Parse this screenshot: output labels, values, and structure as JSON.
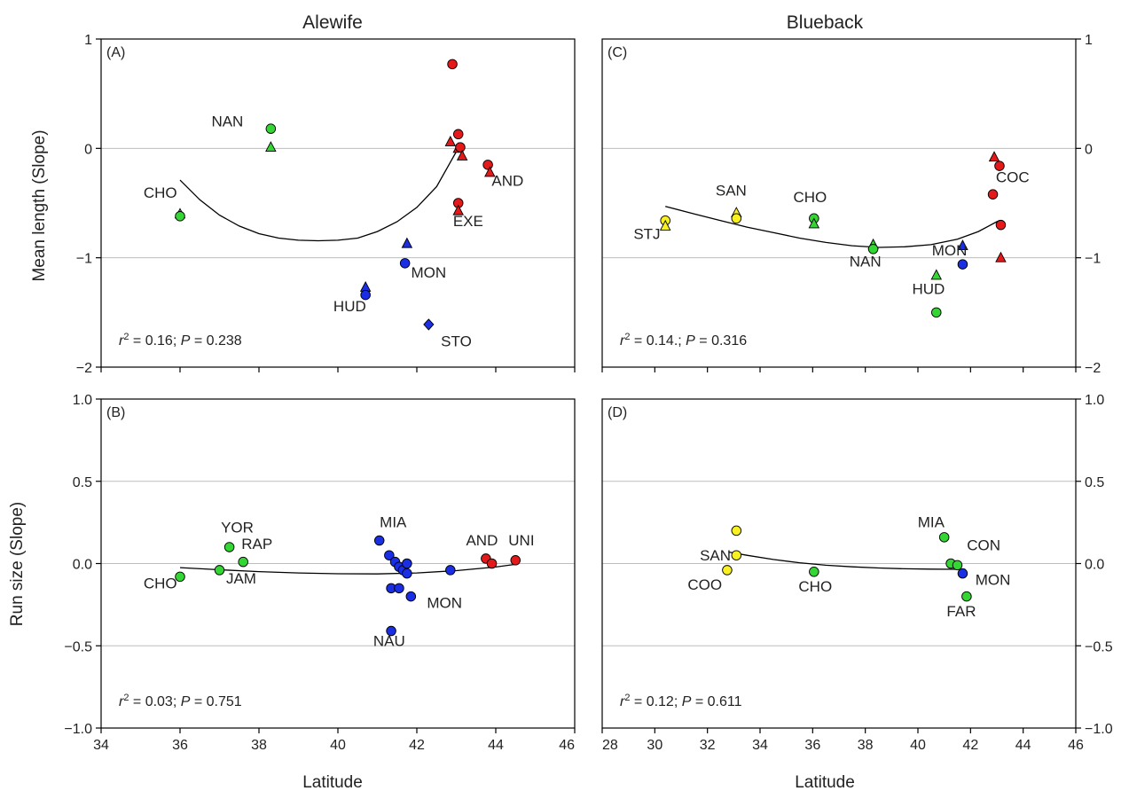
{
  "figure": {
    "column_titles": [
      "Alewife",
      "Blueback"
    ],
    "xlabel": "Latitude",
    "row_ylabels": [
      "Mean length (Slope)",
      "Run size (Slope)"
    ]
  },
  "colors": {
    "green": "#33d633",
    "red": "#e6191a",
    "blue": "#1a2ee6",
    "yellow": "#f7f022",
    "grid": "#bdbdbd"
  },
  "chart_data": [
    {
      "id": "A",
      "panel_label": "(A)",
      "type": "scatter",
      "xlim": [
        34,
        46
      ],
      "ylim": [
        -2,
        1
      ],
      "xticks": [
        34,
        36,
        38,
        40,
        42,
        44,
        46
      ],
      "yticks": [
        -2,
        -1,
        0,
        1
      ],
      "ytick_labels": [
        "−2",
        "−1",
        "0",
        "1"
      ],
      "grid_y": [
        -1,
        0
      ],
      "ytick_side": "left",
      "stats": {
        "r2": "0.16",
        "P": "0.238"
      },
      "fit": [
        [
          36.0,
          -0.29
        ],
        [
          36.5,
          -0.47
        ],
        [
          37.0,
          -0.61
        ],
        [
          37.5,
          -0.71
        ],
        [
          38.0,
          -0.78
        ],
        [
          38.5,
          -0.82
        ],
        [
          39.0,
          -0.84
        ],
        [
          39.5,
          -0.845
        ],
        [
          40.0,
          -0.84
        ],
        [
          40.5,
          -0.82
        ],
        [
          41.0,
          -0.76
        ],
        [
          41.5,
          -0.67
        ],
        [
          42.0,
          -0.54
        ],
        [
          42.5,
          -0.35
        ],
        [
          43.0,
          -0.03
        ]
      ],
      "points": [
        {
          "x": 38.3,
          "y": 0.18,
          "shape": "circle",
          "color": "green"
        },
        {
          "x": 38.3,
          "y": 0.01,
          "shape": "triangle",
          "color": "green"
        },
        {
          "x": 36.0,
          "y": -0.6,
          "shape": "triangle",
          "color": "green"
        },
        {
          "x": 36.0,
          "y": -0.62,
          "shape": "circle",
          "color": "green"
        },
        {
          "x": 42.9,
          "y": 0.77,
          "shape": "circle",
          "color": "red"
        },
        {
          "x": 43.05,
          "y": 0.13,
          "shape": "circle",
          "color": "red"
        },
        {
          "x": 42.85,
          "y": 0.06,
          "shape": "triangle",
          "color": "red"
        },
        {
          "x": 43.05,
          "y": 0.0,
          "shape": "triangle",
          "color": "red"
        },
        {
          "x": 43.1,
          "y": 0.01,
          "shape": "circle",
          "color": "red"
        },
        {
          "x": 43.15,
          "y": -0.07,
          "shape": "triangle",
          "color": "red"
        },
        {
          "x": 43.8,
          "y": -0.15,
          "shape": "circle",
          "color": "red"
        },
        {
          "x": 43.85,
          "y": -0.22,
          "shape": "triangle",
          "color": "red"
        },
        {
          "x": 43.05,
          "y": -0.5,
          "shape": "circle",
          "color": "red"
        },
        {
          "x": 43.05,
          "y": -0.57,
          "shape": "triangle",
          "color": "red"
        },
        {
          "x": 41.75,
          "y": -0.87,
          "shape": "triangle",
          "color": "blue"
        },
        {
          "x": 41.7,
          "y": -1.05,
          "shape": "circle",
          "color": "blue"
        },
        {
          "x": 40.7,
          "y": -1.27,
          "shape": "triangle",
          "color": "blue"
        },
        {
          "x": 40.7,
          "y": -1.34,
          "shape": "circle",
          "color": "blue"
        },
        {
          "x": 42.3,
          "y": -1.61,
          "shape": "diamond",
          "color": "blue"
        }
      ],
      "labels": [
        {
          "text": "NAN",
          "x": 37.2,
          "y": 0.2
        },
        {
          "text": "CHO",
          "x": 35.5,
          "y": -0.45
        },
        {
          "text": "AND",
          "x": 44.3,
          "y": -0.34
        },
        {
          "text": "EXE",
          "x": 43.3,
          "y": -0.71
        },
        {
          "text": "MON",
          "x": 42.3,
          "y": -1.18
        },
        {
          "text": "HUD",
          "x": 40.3,
          "y": -1.49
        },
        {
          "text": "STO",
          "x": 43.0,
          "y": -1.81
        }
      ]
    },
    {
      "id": "C",
      "panel_label": "(C)",
      "type": "scatter",
      "xlim": [
        28,
        46
      ],
      "ylim": [
        -2,
        1
      ],
      "xticks": [
        28,
        30,
        32,
        34,
        36,
        38,
        40,
        42,
        44,
        46
      ],
      "yticks": [
        -2,
        -1,
        0,
        1
      ],
      "ytick_labels": [
        "−2",
        "−1",
        "0",
        "1"
      ],
      "grid_y": [
        -1,
        0
      ],
      "ytick_side": "right",
      "stats": {
        "r2": "0.14.",
        "P": "0.316"
      },
      "fit": [
        [
          30.4,
          -0.53
        ],
        [
          31.5,
          -0.6
        ],
        [
          32.5,
          -0.66
        ],
        [
          33.5,
          -0.72
        ],
        [
          34.5,
          -0.77
        ],
        [
          35.5,
          -0.82
        ],
        [
          36.5,
          -0.86
        ],
        [
          37.5,
          -0.89
        ],
        [
          38.5,
          -0.905
        ],
        [
          39.5,
          -0.9
        ],
        [
          40.5,
          -0.88
        ],
        [
          41.5,
          -0.83
        ],
        [
          42.3,
          -0.76
        ],
        [
          43.0,
          -0.67
        ],
        [
          43.1,
          -0.66
        ]
      ],
      "points": [
        {
          "x": 30.4,
          "y": -0.66,
          "shape": "circle",
          "color": "yellow"
        },
        {
          "x": 30.4,
          "y": -0.71,
          "shape": "triangle",
          "color": "yellow"
        },
        {
          "x": 33.1,
          "y": -0.59,
          "shape": "triangle",
          "color": "yellow"
        },
        {
          "x": 33.1,
          "y": -0.64,
          "shape": "circle",
          "color": "yellow"
        },
        {
          "x": 36.05,
          "y": -0.64,
          "shape": "circle",
          "color": "green"
        },
        {
          "x": 36.05,
          "y": -0.69,
          "shape": "triangle",
          "color": "green"
        },
        {
          "x": 38.3,
          "y": -0.88,
          "shape": "triangle",
          "color": "green"
        },
        {
          "x": 38.3,
          "y": -0.92,
          "shape": "circle",
          "color": "green"
        },
        {
          "x": 40.7,
          "y": -1.16,
          "shape": "triangle",
          "color": "green"
        },
        {
          "x": 40.7,
          "y": -1.5,
          "shape": "circle",
          "color": "green"
        },
        {
          "x": 41.7,
          "y": -0.89,
          "shape": "triangle",
          "color": "blue"
        },
        {
          "x": 41.7,
          "y": -1.06,
          "shape": "circle",
          "color": "blue"
        },
        {
          "x": 42.9,
          "y": -0.08,
          "shape": "triangle",
          "color": "red"
        },
        {
          "x": 43.1,
          "y": -0.16,
          "shape": "circle",
          "color": "red"
        },
        {
          "x": 42.85,
          "y": -0.42,
          "shape": "circle",
          "color": "red"
        },
        {
          "x": 43.15,
          "y": -0.7,
          "shape": "circle",
          "color": "red"
        },
        {
          "x": 43.15,
          "y": -1.0,
          "shape": "triangle",
          "color": "red"
        }
      ],
      "labels": [
        {
          "text": "STJ",
          "x": 29.7,
          "y": -0.83
        },
        {
          "text": "SAN",
          "x": 32.9,
          "y": -0.43
        },
        {
          "text": "CHO",
          "x": 35.9,
          "y": -0.49
        },
        {
          "text": "NAN",
          "x": 38.0,
          "y": -1.08
        },
        {
          "text": "MON",
          "x": 41.2,
          "y": -0.98
        },
        {
          "text": "HUD",
          "x": 40.4,
          "y": -1.33
        },
        {
          "text": "COC",
          "x": 43.6,
          "y": -0.31
        }
      ]
    },
    {
      "id": "B",
      "panel_label": "(B)",
      "type": "scatter",
      "xlim": [
        34,
        46
      ],
      "ylim": [
        -1,
        1
      ],
      "xticks": [
        34,
        36,
        38,
        40,
        42,
        44,
        46
      ],
      "yticks": [
        -1,
        -0.5,
        0,
        0.5,
        1
      ],
      "ytick_labels": [
        "−1.0",
        "−0.5",
        "0.0",
        "0.5",
        "1.0"
      ],
      "xtick_labels": [
        "34",
        "36",
        "38",
        "40",
        "42",
        "44",
        "46"
      ],
      "grid_y": [
        -0.5,
        0,
        0.5
      ],
      "ytick_side": "left",
      "stats": {
        "r2": "0.03",
        "P": "0.751"
      },
      "fit": [
        [
          36.0,
          -0.025
        ],
        [
          37.0,
          -0.038
        ],
        [
          38.0,
          -0.049
        ],
        [
          39.0,
          -0.057
        ],
        [
          40.0,
          -0.062
        ],
        [
          41.0,
          -0.063
        ],
        [
          42.0,
          -0.057
        ],
        [
          43.0,
          -0.043
        ],
        [
          44.0,
          -0.021
        ],
        [
          44.5,
          -0.005
        ]
      ],
      "points": [
        {
          "x": 36.0,
          "y": -0.08,
          "shape": "circle",
          "color": "green"
        },
        {
          "x": 37.0,
          "y": -0.04,
          "shape": "circle",
          "color": "green"
        },
        {
          "x": 37.25,
          "y": 0.1,
          "shape": "circle",
          "color": "green"
        },
        {
          "x": 37.6,
          "y": 0.01,
          "shape": "circle",
          "color": "green"
        },
        {
          "x": 41.05,
          "y": 0.14,
          "shape": "circle",
          "color": "blue"
        },
        {
          "x": 41.3,
          "y": 0.05,
          "shape": "circle",
          "color": "blue"
        },
        {
          "x": 41.45,
          "y": 0.01,
          "shape": "circle",
          "color": "blue"
        },
        {
          "x": 41.55,
          "y": -0.02,
          "shape": "circle",
          "color": "blue"
        },
        {
          "x": 41.65,
          "y": -0.04,
          "shape": "circle",
          "color": "blue"
        },
        {
          "x": 41.75,
          "y": 0.0,
          "shape": "circle",
          "color": "blue"
        },
        {
          "x": 41.75,
          "y": -0.06,
          "shape": "circle",
          "color": "blue"
        },
        {
          "x": 41.35,
          "y": -0.15,
          "shape": "circle",
          "color": "blue"
        },
        {
          "x": 41.55,
          "y": -0.15,
          "shape": "circle",
          "color": "blue"
        },
        {
          "x": 41.85,
          "y": -0.2,
          "shape": "circle",
          "color": "blue"
        },
        {
          "x": 41.35,
          "y": -0.41,
          "shape": "circle",
          "color": "blue"
        },
        {
          "x": 42.85,
          "y": -0.04,
          "shape": "circle",
          "color": "blue"
        },
        {
          "x": 43.75,
          "y": 0.03,
          "shape": "circle",
          "color": "red"
        },
        {
          "x": 43.9,
          "y": 0.0,
          "shape": "circle",
          "color": "red"
        },
        {
          "x": 44.5,
          "y": 0.02,
          "shape": "circle",
          "color": "red"
        }
      ],
      "labels": [
        {
          "text": "YOR",
          "x": 37.45,
          "y": 0.19
        },
        {
          "text": "RAP",
          "x": 37.95,
          "y": 0.09
        },
        {
          "text": "JAM",
          "x": 37.55,
          "y": -0.12
        },
        {
          "text": "CHO",
          "x": 35.5,
          "y": -0.15
        },
        {
          "text": "MIA",
          "x": 41.4,
          "y": 0.22
        },
        {
          "text": "AND",
          "x": 43.65,
          "y": 0.11
        },
        {
          "text": "UNI",
          "x": 44.65,
          "y": 0.11
        },
        {
          "text": "MON",
          "x": 42.7,
          "y": -0.27
        },
        {
          "text": "NAU",
          "x": 41.3,
          "y": -0.5
        }
      ]
    },
    {
      "id": "D",
      "panel_label": "(D)",
      "type": "scatter",
      "xlim": [
        28,
        46
      ],
      "ylim": [
        -1,
        1
      ],
      "xticks": [
        28,
        30,
        32,
        34,
        36,
        38,
        40,
        42,
        44,
        46
      ],
      "yticks": [
        -1,
        -0.5,
        0,
        0.5,
        1
      ],
      "ytick_labels": [
        "−1.0",
        "−0.5",
        "0.0",
        "0.5",
        "1.0"
      ],
      "xtick_labels": [
        "28",
        "30",
        "32",
        "34",
        "36",
        "38",
        "40",
        "42",
        "44",
        "46"
      ],
      "grid_y": [
        -0.5,
        0,
        0.5
      ],
      "ytick_side": "right",
      "stats": {
        "r2": "0.12",
        "P": "0.611"
      },
      "fit": [
        [
          32.8,
          0.07
        ],
        [
          33.5,
          0.05
        ],
        [
          34.5,
          0.025
        ],
        [
          35.5,
          0.005
        ],
        [
          36.5,
          -0.01
        ],
        [
          37.5,
          -0.02
        ],
        [
          38.5,
          -0.027
        ],
        [
          39.5,
          -0.032
        ],
        [
          40.5,
          -0.034
        ],
        [
          41.5,
          -0.035
        ],
        [
          41.8,
          -0.035
        ]
      ],
      "points": [
        {
          "x": 33.1,
          "y": 0.2,
          "shape": "circle",
          "color": "yellow"
        },
        {
          "x": 33.1,
          "y": 0.05,
          "shape": "circle",
          "color": "yellow"
        },
        {
          "x": 32.75,
          "y": -0.04,
          "shape": "circle",
          "color": "yellow"
        },
        {
          "x": 36.05,
          "y": -0.05,
          "shape": "circle",
          "color": "green"
        },
        {
          "x": 41.0,
          "y": 0.16,
          "shape": "circle",
          "color": "green"
        },
        {
          "x": 41.25,
          "y": 0.0,
          "shape": "circle",
          "color": "green"
        },
        {
          "x": 41.5,
          "y": -0.01,
          "shape": "circle",
          "color": "green"
        },
        {
          "x": 41.85,
          "y": -0.2,
          "shape": "circle",
          "color": "green"
        },
        {
          "x": 41.7,
          "y": -0.06,
          "shape": "circle",
          "color": "blue"
        }
      ],
      "labels": [
        {
          "text": "SAN",
          "x": 32.3,
          "y": 0.02
        },
        {
          "text": "COO",
          "x": 31.9,
          "y": -0.16
        },
        {
          "text": "CHO",
          "x": 36.1,
          "y": -0.17
        },
        {
          "text": "MIA",
          "x": 40.5,
          "y": 0.22
        },
        {
          "text": "CON",
          "x": 42.5,
          "y": 0.08
        },
        {
          "text": "MON",
          "x": 42.85,
          "y": -0.13
        },
        {
          "text": "FAR",
          "x": 41.65,
          "y": -0.32
        }
      ]
    }
  ]
}
